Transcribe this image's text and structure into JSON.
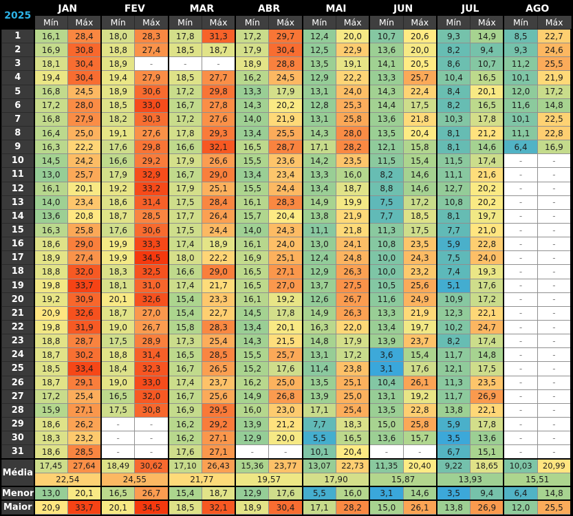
{
  "year": "2025",
  "subheader": {
    "min": "Mín",
    "max": "Máx"
  },
  "months": [
    {
      "key": "jan",
      "label": "JAN"
    },
    {
      "key": "fev",
      "label": "FEV"
    },
    {
      "key": "mar",
      "label": "MAR"
    },
    {
      "key": "abr",
      "label": "ABR"
    },
    {
      "key": "mai",
      "label": "MAI"
    },
    {
      "key": "jun",
      "label": "JUN"
    },
    {
      "key": "jul",
      "label": "JUL"
    },
    {
      "key": "ago",
      "label": "AGO"
    }
  ],
  "labels": {
    "media": "Média",
    "menor": "Menor",
    "maior": "Maior"
  },
  "rows": [
    {
      "day": "1",
      "v": [
        "16,1",
        "28,4",
        "18,0",
        "28,3",
        "17,8",
        "31,3",
        "17,2",
        "29,7",
        "12,4",
        "20,0",
        "10,7",
        "20,6",
        "9,3",
        "14,9",
        "8,5",
        "22,7"
      ]
    },
    {
      "day": "2",
      "v": [
        "16,9",
        "30,8",
        "18,8",
        "27,4",
        "18,5",
        "18,7",
        "17,9",
        "30,4",
        "12,5",
        "22,9",
        "13,6",
        "20,0",
        "8,2",
        "9,4",
        "9,3",
        "24,6"
      ]
    },
    {
      "day": "3",
      "v": [
        "18,1",
        "30,4",
        "18,9",
        "-",
        "-",
        "-",
        "18,9",
        "28,8",
        "13,5",
        "19,1",
        "14,1",
        "20,5",
        "8,6",
        "10,7",
        "11,2",
        "25,5"
      ]
    },
    {
      "day": "4",
      "v": [
        "19,4",
        "30,4",
        "19,4",
        "27,9",
        "18,5",
        "27,7",
        "16,2",
        "24,5",
        "12,9",
        "22,2",
        "13,3",
        "25,7",
        "10,4",
        "16,5",
        "10,1",
        "21,9"
      ]
    },
    {
      "day": "5",
      "v": [
        "16,8",
        "24,5",
        "18,9",
        "30,6",
        "17,2",
        "29,8",
        "13,3",
        "17,9",
        "13,1",
        "24,0",
        "14,3",
        "22,4",
        "8,4",
        "20,1",
        "12,0",
        "17,2"
      ]
    },
    {
      "day": "6",
      "v": [
        "17,2",
        "28,0",
        "18,5",
        "33,0",
        "16,7",
        "27,8",
        "14,3",
        "20,2",
        "12,8",
        "25,3",
        "14,4",
        "17,5",
        "8,2",
        "16,5",
        "11,6",
        "14,8"
      ]
    },
    {
      "day": "7",
      "v": [
        "16,8",
        "27,9",
        "18,2",
        "30,3",
        "17,2",
        "27,6",
        "14,0",
        "21,9",
        "13,1",
        "25,8",
        "13,6",
        "21,8",
        "10,3",
        "17,8",
        "10,1",
        "22,5"
      ]
    },
    {
      "day": "8",
      "v": [
        "16,4",
        "25,0",
        "19,1",
        "27,6",
        "17,8",
        "29,3",
        "13,4",
        "25,5",
        "14,3",
        "28,0",
        "13,5",
        "20,4",
        "8,1",
        "21,2",
        "11,1",
        "22,8"
      ]
    },
    {
      "day": "9",
      "v": [
        "16,3",
        "22,2",
        "17,6",
        "29,8",
        "16,6",
        "32,1",
        "16,5",
        "28,7",
        "17,1",
        "28,2",
        "12,1",
        "15,8",
        "8,1",
        "14,6",
        "6,4",
        "16,9"
      ]
    },
    {
      "day": "10",
      "v": [
        "14,5",
        "24,2",
        "16,6",
        "29,2",
        "17,9",
        "26,6",
        "15,5",
        "23,6",
        "14,2",
        "23,5",
        "11,5",
        "15,4",
        "11,5",
        "17,4",
        "-",
        "-"
      ]
    },
    {
      "day": "11",
      "v": [
        "13,0",
        "25,7",
        "17,9",
        "32,9",
        "16,7",
        "29,0",
        "13,4",
        "23,4",
        "13,3",
        "16,0",
        "8,2",
        "14,6",
        "11,1",
        "21,6",
        "-",
        "-"
      ]
    },
    {
      "day": "12",
      "v": [
        "16,1",
        "20,1",
        "19,2",
        "33,2",
        "17,9",
        "25,1",
        "15,5",
        "24,4",
        "13,4",
        "18,7",
        "8,8",
        "14,6",
        "12,7",
        "20,2",
        "-",
        "-"
      ]
    },
    {
      "day": "13",
      "v": [
        "14,0",
        "23,4",
        "18,6",
        "31,4",
        "17,5",
        "28,4",
        "16,1",
        "28,3",
        "14,9",
        "19,9",
        "7,5",
        "17,2",
        "10,8",
        "20,2",
        "-",
        "-"
      ]
    },
    {
      "day": "14",
      "v": [
        "13,6",
        "20,8",
        "18,7",
        "28,5",
        "17,7",
        "26,4",
        "15,7",
        "20,4",
        "13,8",
        "21,9",
        "7,7",
        "18,5",
        "8,1",
        "19,7",
        "-",
        "-"
      ]
    },
    {
      "day": "15",
      "v": [
        "16,3",
        "25,8",
        "17,6",
        "30,6",
        "17,5",
        "24,4",
        "14,0",
        "24,3",
        "11,1",
        "21,8",
        "11,3",
        "17,5",
        "7,7",
        "21,0",
        "-",
        "-"
      ]
    },
    {
      "day": "16",
      "v": [
        "18,6",
        "29,0",
        "19,9",
        "33,3",
        "17,4",
        "18,9",
        "16,1",
        "24,0",
        "13,0",
        "24,1",
        "10,8",
        "23,5",
        "5,9",
        "22,8",
        "-",
        "-"
      ]
    },
    {
      "day": "17",
      "v": [
        "18,9",
        "27,4",
        "19,9",
        "34,5",
        "18,0",
        "22,2",
        "16,9",
        "25,1",
        "12,4",
        "24,8",
        "10,0",
        "24,3",
        "7,5",
        "24,0",
        "-",
        "-"
      ]
    },
    {
      "day": "18",
      "v": [
        "18,8",
        "32,0",
        "18,3",
        "32,5",
        "16,6",
        "29,0",
        "16,5",
        "27,1",
        "12,9",
        "26,3",
        "10,0",
        "23,2",
        "7,4",
        "19,3",
        "-",
        "-"
      ]
    },
    {
      "day": "19",
      "v": [
        "19,8",
        "33,7",
        "18,1",
        "31,0",
        "17,4",
        "21,7",
        "16,5",
        "27,0",
        "13,7",
        "27,5",
        "10,5",
        "25,6",
        "5,1",
        "17,6",
        "-",
        "-"
      ]
    },
    {
      "day": "20",
      "v": [
        "19,2",
        "30,9",
        "20,1",
        "32,6",
        "15,4",
        "23,3",
        "16,1",
        "19,2",
        "12,6",
        "26,7",
        "11,6",
        "24,9",
        "10,9",
        "17,2",
        "-",
        "-"
      ]
    },
    {
      "day": "21",
      "v": [
        "20,9",
        "32,6",
        "18,7",
        "27,0",
        "15,4",
        "22,7",
        "14,5",
        "17,8",
        "14,9",
        "26,3",
        "13,3",
        "21,9",
        "12,3",
        "22,1",
        "-",
        "-"
      ]
    },
    {
      "day": "22",
      "v": [
        "19,8",
        "31,9",
        "19,0",
        "26,7",
        "15,8",
        "28,3",
        "13,4",
        "20,1",
        "16,3",
        "22,0",
        "13,4",
        "19,7",
        "10,2",
        "24,7",
        "-",
        "-"
      ]
    },
    {
      "day": "23",
      "v": [
        "18,8",
        "28,7",
        "17,5",
        "28,9",
        "17,3",
        "25,4",
        "14,3",
        "21,5",
        "14,8",
        "17,9",
        "13,9",
        "23,7",
        "8,2",
        "17,4",
        "-",
        "-"
      ]
    },
    {
      "day": "24",
      "v": [
        "18,7",
        "30,2",
        "18,8",
        "31,4",
        "16,5",
        "28,5",
        "15,5",
        "25,7",
        "13,1",
        "17,2",
        "3,6",
        "15,4",
        "11,7",
        "14,8",
        "-",
        "-"
      ]
    },
    {
      "day": "25",
      "v": [
        "18,5",
        "33,4",
        "18,4",
        "32,3",
        "16,7",
        "26,5",
        "15,2",
        "17,6",
        "11,4",
        "23,8",
        "3,1",
        "17,6",
        "12,1",
        "17,5",
        "-",
        "-"
      ]
    },
    {
      "day": "26",
      "v": [
        "18,7",
        "29,1",
        "19,0",
        "33,0",
        "17,4",
        "23,7",
        "16,2",
        "25,0",
        "13,5",
        "25,1",
        "10,4",
        "26,1",
        "11,3",
        "23,5",
        "-",
        "-"
      ]
    },
    {
      "day": "27",
      "v": [
        "17,2",
        "25,4",
        "16,5",
        "32,0",
        "16,7",
        "25,6",
        "14,9",
        "26,8",
        "13,9",
        "25,0",
        "13,1",
        "19,2",
        "11,7",
        "26,9",
        "-",
        "-"
      ]
    },
    {
      "day": "28",
      "v": [
        "15,9",
        "27,1",
        "17,5",
        "30,8",
        "16,9",
        "29,5",
        "16,0",
        "23,0",
        "17,1",
        "25,4",
        "13,5",
        "22,8",
        "13,8",
        "22,1",
        "-",
        "-"
      ]
    },
    {
      "day": "29",
      "v": [
        "18,6",
        "26,2",
        "-",
        "-",
        "16,2",
        "29,2",
        "13,9",
        "21,2",
        "7,7",
        "18,3",
        "15,0",
        "25,8",
        "5,9",
        "17,8",
        "-",
        "-"
      ]
    },
    {
      "day": "30",
      "v": [
        "18,3",
        "23,2",
        "-",
        "-",
        "16,2",
        "27,1",
        "12,9",
        "20,0",
        "5,5",
        "16,5",
        "13,6",
        "15,7",
        "3,5",
        "13,6",
        "-",
        "-"
      ]
    },
    {
      "day": "31",
      "v": [
        "18,6",
        "28,5",
        "-",
        "-",
        "17,6",
        "27,1",
        "-",
        "-",
        "10,1",
        "20,4",
        "-",
        "-",
        "6,7",
        "15,1",
        "-",
        "-"
      ]
    }
  ],
  "media": [
    "17,45",
    "27,64",
    "18,49",
    "30,62",
    "17,10",
    "26,43",
    "15,36",
    "23,77",
    "13,07",
    "22,73",
    "11,35",
    "20,40",
    "9,22",
    "18,65",
    "10,03",
    "20,99"
  ],
  "media_month": [
    "22,54",
    "24,55",
    "21,77",
    "19,57",
    "17,90",
    "15,87",
    "13,93",
    "15,51"
  ],
  "menor": [
    "13,0",
    "20,1",
    "16,5",
    "26,7",
    "15,4",
    "18,7",
    "12,9",
    "17,6",
    "5,5",
    "16,0",
    "3,1",
    "14,6",
    "3,5",
    "9,4",
    "6,4",
    "14,8"
  ],
  "maior": [
    "20,9",
    "33,7",
    "20,1",
    "34,5",
    "18,5",
    "32,1",
    "18,9",
    "30,4",
    "17,1",
    "28,2",
    "15,0",
    "26,1",
    "13,8",
    "26,9",
    "12,0",
    "25,5"
  ],
  "colors": {
    "background": "#000000",
    "header_bg": "#000000",
    "header_text": "#ffffff",
    "year_text": "#2db4e8",
    "subheader_bg": "#3f3f3f",
    "row_label_bg": "#3a3a3a",
    "value_text": "#1c1c1c",
    "empty_cell_bg": "#ffffff",
    "empty_cell_text": "#7f7f7f",
    "grid_line": "#8f8f8f",
    "group_border": "#000000",
    "scale_stops": [
      [
        3.0,
        "#3aa7dc"
      ],
      [
        5.5,
        "#45aece"
      ],
      [
        8.0,
        "#65bcb4"
      ],
      [
        10.5,
        "#84c7a3"
      ],
      [
        13.0,
        "#96cd96"
      ],
      [
        15.5,
        "#add58e"
      ],
      [
        18.0,
        "#d6df8a"
      ],
      [
        19.5,
        "#ede785"
      ],
      [
        20.5,
        "#ffeb84"
      ],
      [
        34.5,
        "#f5390e"
      ]
    ]
  }
}
